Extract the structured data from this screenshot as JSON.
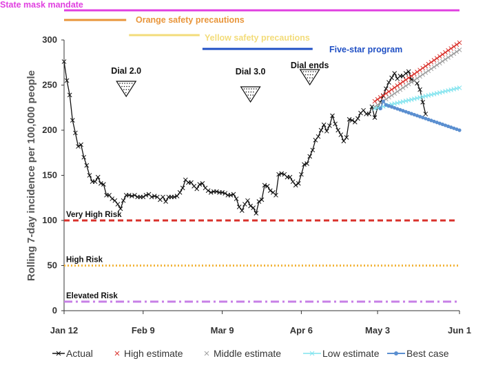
{
  "chart_data": {
    "type": "line",
    "ylabel": "Rolling 7-day incidence per 100,000 people",
    "xlabel": "",
    "ylim": [
      0,
      300
    ],
    "y_ticks": [
      0,
      50,
      100,
      150,
      200,
      250,
      300
    ],
    "x_ticks": [
      {
        "label": "Jan 12",
        "day": 0
      },
      {
        "label": "Feb 9",
        "day": 28
      },
      {
        "label": "Mar 9",
        "day": 56
      },
      {
        "label": "Apr 6",
        "day": 84
      },
      {
        "label": "May 3",
        "day": 111
      },
      {
        "label": "Jun 1",
        "day": 140
      }
    ],
    "grid": false,
    "legend_position": "bottom",
    "policy_bars": [
      {
        "label": "State mask mandate",
        "start_day": 0,
        "end_day": 140,
        "color": "#e040e0"
      },
      {
        "label": "Orange safety precautions",
        "start_day": 0,
        "end_day": 22,
        "color": "#e8953a"
      },
      {
        "label": "Yellow safety precautions",
        "start_day": 23,
        "end_day": 48,
        "color": "#f3dc7a"
      },
      {
        "label": "Five-star program",
        "start_day": 49,
        "end_day": 88,
        "color": "#1f4fc4"
      }
    ],
    "risk_lines": [
      {
        "label": "Very High Risk",
        "value": 100,
        "color": "#d9312b",
        "style": "dashed"
      },
      {
        "label": "High Risk",
        "value": 50,
        "color": "#f2b53c",
        "style": "dotted"
      },
      {
        "label": "Elevated Risk",
        "value": 10,
        "color": "#c77fe6",
        "style": "dashdot"
      }
    ],
    "dial_markers": [
      {
        "label": "Dial 2.0",
        "day": 22
      },
      {
        "label": "Dial 3.0",
        "day": 66
      },
      {
        "label": "Dial ends",
        "day": 87
      }
    ],
    "series": [
      {
        "name": "Actual",
        "color": "#111111",
        "marker": "x",
        "x_start": 0,
        "values": [
          276,
          255,
          239,
          211,
          197,
          182,
          184,
          170,
          161,
          150,
          143,
          143,
          148,
          141,
          140,
          128,
          128,
          124,
          122,
          118,
          113,
          122,
          128,
          128,
          127,
          128,
          126,
          126,
          126,
          128,
          129,
          126,
          127,
          126,
          123,
          126,
          121,
          126,
          126,
          126,
          127,
          131,
          136,
          145,
          142,
          142,
          138,
          135,
          140,
          141,
          136,
          133,
          131,
          132,
          132,
          131,
          131,
          130,
          128,
          128,
          129,
          124,
          115,
          111,
          118,
          122,
          116,
          114,
          108,
          121,
          123,
          139,
          138,
          133,
          131,
          128,
          151,
          152,
          151,
          148,
          148,
          143,
          139,
          141,
          151,
          162,
          163,
          171,
          178,
          189,
          193,
          200,
          206,
          199,
          205,
          216,
          207,
          200,
          195,
          188,
          192,
          212,
          211,
          209,
          213,
          219,
          222,
          218,
          218,
          226,
          214,
          225,
          231,
          238,
          246,
          253,
          258,
          263,
          257,
          260,
          260,
          263,
          265,
          256,
          255,
          252,
          245,
          231,
          218
        ]
      },
      {
        "name": "High estimate",
        "color": "#d9312b",
        "marker": "x",
        "x_start": 110,
        "values": [
          232,
          297
        ]
      },
      {
        "name": "Middle estimate",
        "color": "#9e9e9e",
        "marker": "x",
        "x_start": 110,
        "values": [
          226,
          289
        ]
      },
      {
        "name": "Low estimate",
        "color": "#7fe3ee",
        "marker": "x",
        "x_start": 110,
        "values": [
          224,
          247
        ]
      },
      {
        "name": "Best case",
        "color": "#5b8fd0",
        "marker": "dot",
        "x_start": 112,
        "values": [
          224,
          232,
          228,
          200
        ]
      }
    ]
  }
}
